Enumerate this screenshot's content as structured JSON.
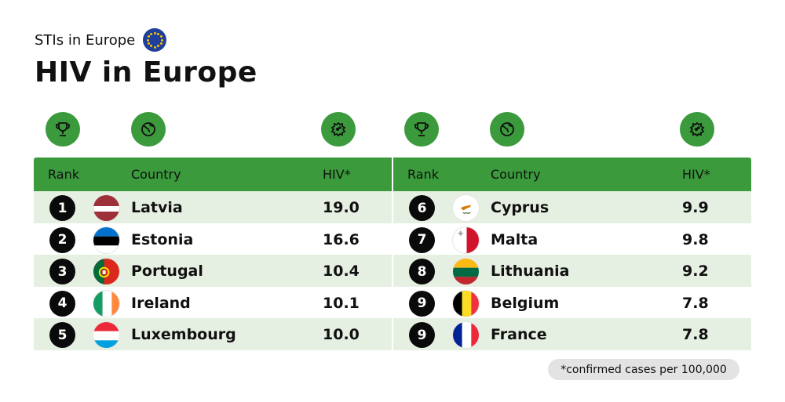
{
  "header": {
    "subtitle": "STIs in Europe",
    "title": "HIV in Europe"
  },
  "icons": {
    "rank": "trophy-icon",
    "country": "globe-icon",
    "hiv": "virus-icon"
  },
  "columns": {
    "rank": "Rank",
    "country": "Country",
    "value": "HIV*"
  },
  "left_rows": [
    {
      "rank": "1",
      "country": "Latvia",
      "value": "19.0",
      "flag": "latvia"
    },
    {
      "rank": "2",
      "country": "Estonia",
      "value": "16.6",
      "flag": "estonia"
    },
    {
      "rank": "3",
      "country": "Portugal",
      "value": "10.4",
      "flag": "portugal"
    },
    {
      "rank": "4",
      "country": "Ireland",
      "value": "10.1",
      "flag": "ireland"
    },
    {
      "rank": "5",
      "country": "Luxembourg",
      "value": "10.0",
      "flag": "luxembourg"
    }
  ],
  "right_rows": [
    {
      "rank": "6",
      "country": "Cyprus",
      "value": "9.9",
      "flag": "cyprus"
    },
    {
      "rank": "7",
      "country": "Malta",
      "value": "9.8",
      "flag": "malta"
    },
    {
      "rank": "8",
      "country": "Lithuania",
      "value": "9.2",
      "flag": "lithuania"
    },
    {
      "rank": "9",
      "country": "Belgium",
      "value": "7.8",
      "flag": "belgium"
    },
    {
      "rank": "9",
      "country": "France",
      "value": "7.8",
      "flag": "france"
    }
  ],
  "footnote": "*confirmed cases per 100,000",
  "colors": {
    "accent": "#3a9a3c",
    "row_shade": "#e6f0e2",
    "rank_badge": "#0a0a0a"
  }
}
